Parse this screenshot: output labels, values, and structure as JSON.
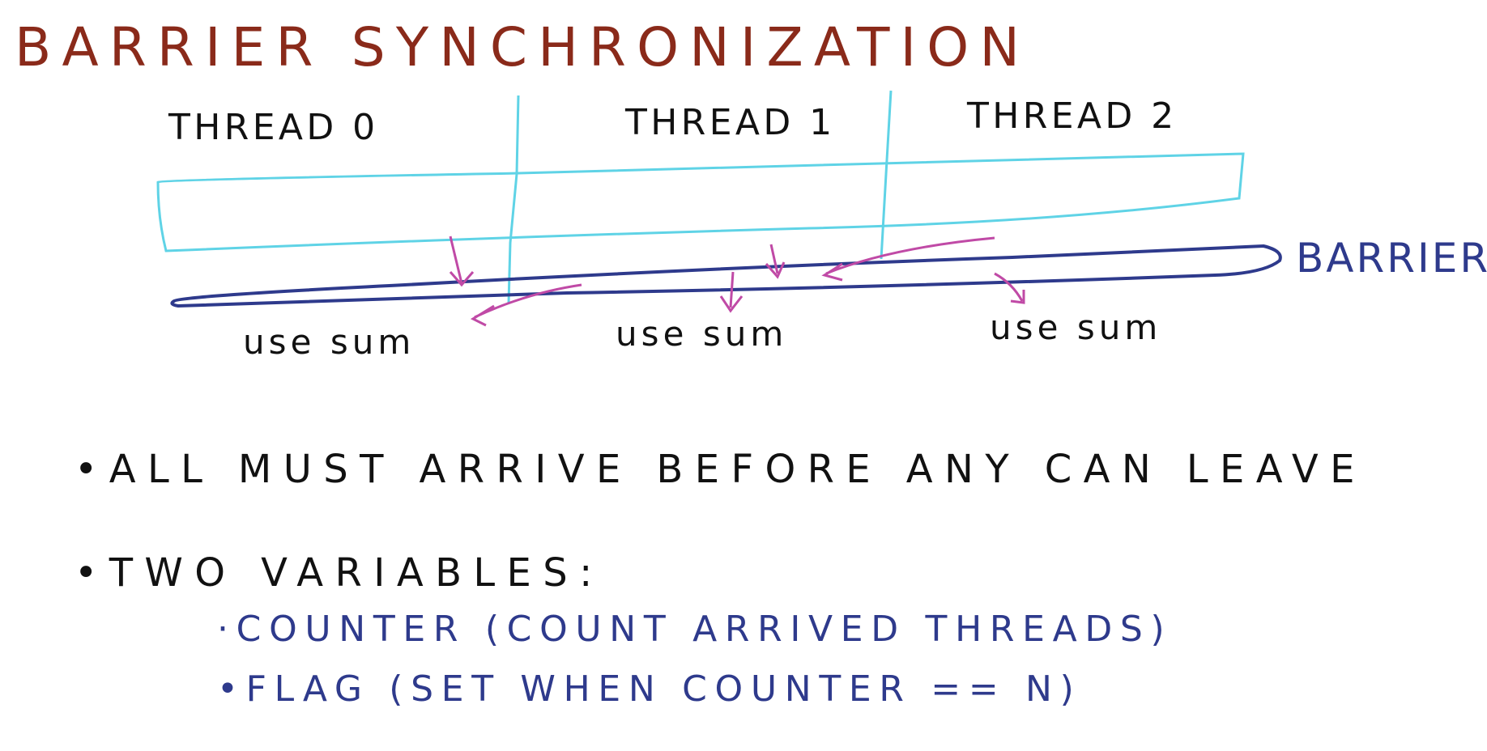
{
  "title": "BARRIER SYNCHRONIZATION",
  "threads": [
    "THREAD 0",
    "THREAD 1",
    "THREAD 2"
  ],
  "use_labels": [
    "use sum",
    "use sum",
    "use sum"
  ],
  "barrier_label": "BARRIER",
  "bullets": [
    "•ALL MUST ARRIVE BEFORE ANY CAN LEAVE",
    "•TWO VARIABLES:"
  ],
  "sub_bullets": [
    "·COUNTER (COUNT ARRIVED THREADS)",
    "•FLAG (SET WHEN COUNTER == N)"
  ],
  "colors": {
    "title": "#8a2a1a",
    "text": "#111111",
    "box": "#5fd3e6",
    "barrier": "#2e3a8c",
    "arrows": "#c04aa6"
  }
}
